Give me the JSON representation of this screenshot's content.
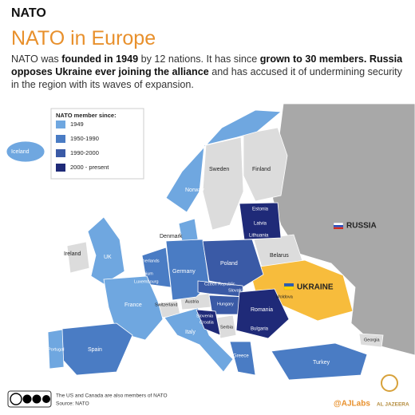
{
  "header": {
    "kicker": "NATO",
    "title": "NATO in Europe",
    "description": [
      "NATO was ",
      "founded in 1949",
      " by 12 nations. It has since ",
      "grown to 30 members.",
      " ",
      "Russia opposes Ukraine ever joining the alliance",
      " and has accused it of undermining security in the region with its waves of expansion."
    ]
  },
  "legend": {
    "title": "NATO member since:",
    "items": [
      {
        "label": "1949",
        "color": "#6fa7e0"
      },
      {
        "label": "1950-1990",
        "color": "#4a7cc4"
      },
      {
        "label": "1990-2000",
        "color": "#3a5aa6"
      },
      {
        "label": "2000 - present",
        "color": "#1f2a78"
      }
    ]
  },
  "map": {
    "labels": [
      "Iceland",
      "Norway",
      "Sweden",
      "Finland",
      "Estonia",
      "Latvia",
      "Lithuania",
      "Denmark",
      "Ireland",
      "UK",
      "Netherlands",
      "Belgium",
      "Luxembourg",
      "Germany",
      "Poland",
      "Belarus",
      "Czech Republic",
      "Slovakia",
      "France",
      "Switzerland",
      "Austria",
      "Hungary",
      "Slovenia",
      "Croatia",
      "Romania",
      "Moldova",
      "Serbia",
      "Bulgaria",
      "Italy",
      "Spain",
      "Portugal",
      "Greece",
      "Turkey",
      "Georgia"
    ],
    "russia": "RUSSIA",
    "ukraine": "UKRAINE"
  },
  "footer": {
    "note": "The US and Canada are also members of NATO",
    "source": "Source: NATO",
    "handle": "@AJLabs",
    "brand": "AL JAZEERA"
  }
}
